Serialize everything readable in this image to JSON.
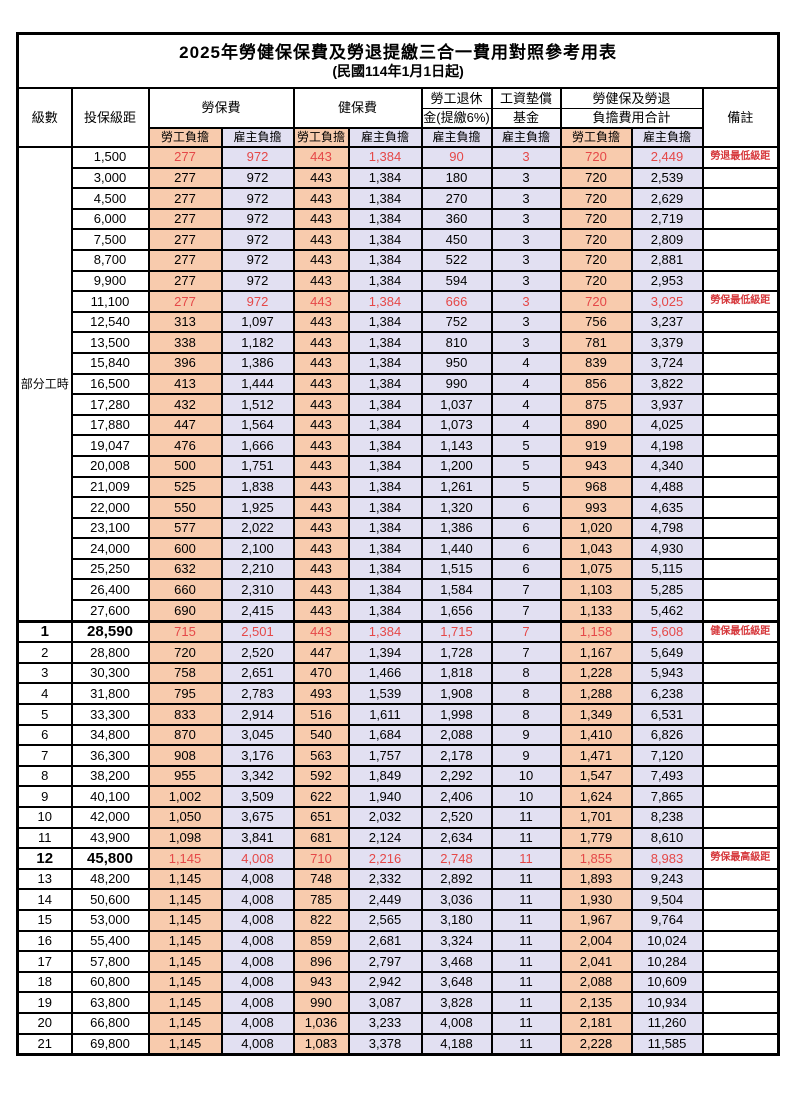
{
  "title": "2025年勞健保保費及勞退提繳三合一費用對照參考用表",
  "subtitle": "(民國114年1月1日起)",
  "header": {
    "col_level": "級數",
    "col_bracket": "投保級距",
    "labor_insurance": "勞保費",
    "health_insurance": "健保費",
    "pension_line1": "勞工退休",
    "pension_line2": "金(提繳6%)",
    "wage_fund_line1": "工資墊償",
    "wage_fund_line2": "基金",
    "total_line1": "勞健保及勞退",
    "total_line2": "負擔費用合計",
    "remark": "備註",
    "employee_burden": "勞工負擔",
    "employer_burden": "雇主負擔"
  },
  "group": {
    "label": "部分工時",
    "span": 23
  },
  "rows": [
    {
      "level": "",
      "bracket": "1,500",
      "values": [
        "277",
        "972",
        "443",
        "1,384",
        "90",
        "3",
        "720",
        "2,449"
      ],
      "remark": "勞退最低級距",
      "red": true,
      "key": false
    },
    {
      "level": "",
      "bracket": "3,000",
      "values": [
        "277",
        "972",
        "443",
        "1,384",
        "180",
        "3",
        "720",
        "2,539"
      ],
      "remark": "",
      "red": false,
      "key": false
    },
    {
      "level": "",
      "bracket": "4,500",
      "values": [
        "277",
        "972",
        "443",
        "1,384",
        "270",
        "3",
        "720",
        "2,629"
      ],
      "remark": "",
      "red": false,
      "key": false
    },
    {
      "level": "",
      "bracket": "6,000",
      "values": [
        "277",
        "972",
        "443",
        "1,384",
        "360",
        "3",
        "720",
        "2,719"
      ],
      "remark": "",
      "red": false,
      "key": false
    },
    {
      "level": "",
      "bracket": "7,500",
      "values": [
        "277",
        "972",
        "443",
        "1,384",
        "450",
        "3",
        "720",
        "2,809"
      ],
      "remark": "",
      "red": false,
      "key": false
    },
    {
      "level": "",
      "bracket": "8,700",
      "values": [
        "277",
        "972",
        "443",
        "1,384",
        "522",
        "3",
        "720",
        "2,881"
      ],
      "remark": "",
      "red": false,
      "key": false
    },
    {
      "level": "",
      "bracket": "9,900",
      "values": [
        "277",
        "972",
        "443",
        "1,384",
        "594",
        "3",
        "720",
        "2,953"
      ],
      "remark": "",
      "red": false,
      "key": false
    },
    {
      "level": "",
      "bracket": "11,100",
      "values": [
        "277",
        "972",
        "443",
        "1,384",
        "666",
        "3",
        "720",
        "3,025"
      ],
      "remark": "勞保最低級距",
      "red": true,
      "key": false
    },
    {
      "level": "",
      "bracket": "12,540",
      "values": [
        "313",
        "1,097",
        "443",
        "1,384",
        "752",
        "3",
        "756",
        "3,237"
      ],
      "remark": "",
      "red": false,
      "key": false
    },
    {
      "level": "",
      "bracket": "13,500",
      "values": [
        "338",
        "1,182",
        "443",
        "1,384",
        "810",
        "3",
        "781",
        "3,379"
      ],
      "remark": "",
      "red": false,
      "key": false
    },
    {
      "level": "",
      "bracket": "15,840",
      "values": [
        "396",
        "1,386",
        "443",
        "1,384",
        "950",
        "4",
        "839",
        "3,724"
      ],
      "remark": "",
      "red": false,
      "key": false
    },
    {
      "level": "",
      "bracket": "16,500",
      "values": [
        "413",
        "1,444",
        "443",
        "1,384",
        "990",
        "4",
        "856",
        "3,822"
      ],
      "remark": "",
      "red": false,
      "key": false
    },
    {
      "level": "",
      "bracket": "17,280",
      "values": [
        "432",
        "1,512",
        "443",
        "1,384",
        "1,037",
        "4",
        "875",
        "3,937"
      ],
      "remark": "",
      "red": false,
      "key": false
    },
    {
      "level": "",
      "bracket": "17,880",
      "values": [
        "447",
        "1,564",
        "443",
        "1,384",
        "1,073",
        "4",
        "890",
        "4,025"
      ],
      "remark": "",
      "red": false,
      "key": false
    },
    {
      "level": "",
      "bracket": "19,047",
      "values": [
        "476",
        "1,666",
        "443",
        "1,384",
        "1,143",
        "5",
        "919",
        "4,198"
      ],
      "remark": "",
      "red": false,
      "key": false
    },
    {
      "level": "",
      "bracket": "20,008",
      "values": [
        "500",
        "1,751",
        "443",
        "1,384",
        "1,200",
        "5",
        "943",
        "4,340"
      ],
      "remark": "",
      "red": false,
      "key": false
    },
    {
      "level": "",
      "bracket": "21,009",
      "values": [
        "525",
        "1,838",
        "443",
        "1,384",
        "1,261",
        "5",
        "968",
        "4,488"
      ],
      "remark": "",
      "red": false,
      "key": false
    },
    {
      "level": "",
      "bracket": "22,000",
      "values": [
        "550",
        "1,925",
        "443",
        "1,384",
        "1,320",
        "6",
        "993",
        "4,635"
      ],
      "remark": "",
      "red": false,
      "key": false
    },
    {
      "level": "",
      "bracket": "23,100",
      "values": [
        "577",
        "2,022",
        "443",
        "1,384",
        "1,386",
        "6",
        "1,020",
        "4,798"
      ],
      "remark": "",
      "red": false,
      "key": false
    },
    {
      "level": "",
      "bracket": "24,000",
      "values": [
        "600",
        "2,100",
        "443",
        "1,384",
        "1,440",
        "6",
        "1,043",
        "4,930"
      ],
      "remark": "",
      "red": false,
      "key": false
    },
    {
      "level": "",
      "bracket": "25,250",
      "values": [
        "632",
        "2,210",
        "443",
        "1,384",
        "1,515",
        "6",
        "1,075",
        "5,115"
      ],
      "remark": "",
      "red": false,
      "key": false
    },
    {
      "level": "",
      "bracket": "26,400",
      "values": [
        "660",
        "2,310",
        "443",
        "1,384",
        "1,584",
        "7",
        "1,103",
        "5,285"
      ],
      "remark": "",
      "red": false,
      "key": false
    },
    {
      "level": "",
      "bracket": "27,600",
      "values": [
        "690",
        "2,415",
        "443",
        "1,384",
        "1,656",
        "7",
        "1,133",
        "5,462"
      ],
      "remark": "",
      "red": false,
      "key": false
    },
    {
      "level": "1",
      "bracket": "28,590",
      "values": [
        "715",
        "2,501",
        "443",
        "1,384",
        "1,715",
        "7",
        "1,158",
        "5,608"
      ],
      "remark": "健保最低級距",
      "red": true,
      "key": true
    },
    {
      "level": "2",
      "bracket": "28,800",
      "values": [
        "720",
        "2,520",
        "447",
        "1,394",
        "1,728",
        "7",
        "1,167",
        "5,649"
      ],
      "remark": "",
      "red": false,
      "key": false
    },
    {
      "level": "3",
      "bracket": "30,300",
      "values": [
        "758",
        "2,651",
        "470",
        "1,466",
        "1,818",
        "8",
        "1,228",
        "5,943"
      ],
      "remark": "",
      "red": false,
      "key": false
    },
    {
      "level": "4",
      "bracket": "31,800",
      "values": [
        "795",
        "2,783",
        "493",
        "1,539",
        "1,908",
        "8",
        "1,288",
        "6,238"
      ],
      "remark": "",
      "red": false,
      "key": false
    },
    {
      "level": "5",
      "bracket": "33,300",
      "values": [
        "833",
        "2,914",
        "516",
        "1,611",
        "1,998",
        "8",
        "1,349",
        "6,531"
      ],
      "remark": "",
      "red": false,
      "key": false
    },
    {
      "level": "6",
      "bracket": "34,800",
      "values": [
        "870",
        "3,045",
        "540",
        "1,684",
        "2,088",
        "9",
        "1,410",
        "6,826"
      ],
      "remark": "",
      "red": false,
      "key": false
    },
    {
      "level": "7",
      "bracket": "36,300",
      "values": [
        "908",
        "3,176",
        "563",
        "1,757",
        "2,178",
        "9",
        "1,471",
        "7,120"
      ],
      "remark": "",
      "red": false,
      "key": false
    },
    {
      "level": "8",
      "bracket": "38,200",
      "values": [
        "955",
        "3,342",
        "592",
        "1,849",
        "2,292",
        "10",
        "1,547",
        "7,493"
      ],
      "remark": "",
      "red": false,
      "key": false
    },
    {
      "level": "9",
      "bracket": "40,100",
      "values": [
        "1,002",
        "3,509",
        "622",
        "1,940",
        "2,406",
        "10",
        "1,624",
        "7,865"
      ],
      "remark": "",
      "red": false,
      "key": false
    },
    {
      "level": "10",
      "bracket": "42,000",
      "values": [
        "1,050",
        "3,675",
        "651",
        "2,032",
        "2,520",
        "11",
        "1,701",
        "8,238"
      ],
      "remark": "",
      "red": false,
      "key": false
    },
    {
      "level": "11",
      "bracket": "43,900",
      "values": [
        "1,098",
        "3,841",
        "681",
        "2,124",
        "2,634",
        "11",
        "1,779",
        "8,610"
      ],
      "remark": "",
      "red": false,
      "key": false
    },
    {
      "level": "12",
      "bracket": "45,800",
      "values": [
        "1,145",
        "4,008",
        "710",
        "2,216",
        "2,748",
        "11",
        "1,855",
        "8,983"
      ],
      "remark": "勞保最高級距",
      "red": true,
      "key": true
    },
    {
      "level": "13",
      "bracket": "48,200",
      "values": [
        "1,145",
        "4,008",
        "748",
        "2,332",
        "2,892",
        "11",
        "1,893",
        "9,243"
      ],
      "remark": "",
      "red": false,
      "key": false
    },
    {
      "level": "14",
      "bracket": "50,600",
      "values": [
        "1,145",
        "4,008",
        "785",
        "2,449",
        "3,036",
        "11",
        "1,930",
        "9,504"
      ],
      "remark": "",
      "red": false,
      "key": false
    },
    {
      "level": "15",
      "bracket": "53,000",
      "values": [
        "1,145",
        "4,008",
        "822",
        "2,565",
        "3,180",
        "11",
        "1,967",
        "9,764"
      ],
      "remark": "",
      "red": false,
      "key": false
    },
    {
      "level": "16",
      "bracket": "55,400",
      "values": [
        "1,145",
        "4,008",
        "859",
        "2,681",
        "3,324",
        "11",
        "2,004",
        "10,024"
      ],
      "remark": "",
      "red": false,
      "key": false
    },
    {
      "level": "17",
      "bracket": "57,800",
      "values": [
        "1,145",
        "4,008",
        "896",
        "2,797",
        "3,468",
        "11",
        "2,041",
        "10,284"
      ],
      "remark": "",
      "red": false,
      "key": false
    },
    {
      "level": "18",
      "bracket": "60,800",
      "values": [
        "1,145",
        "4,008",
        "943",
        "2,942",
        "3,648",
        "11",
        "2,088",
        "10,609"
      ],
      "remark": "",
      "red": false,
      "key": false
    },
    {
      "level": "19",
      "bracket": "63,800",
      "values": [
        "1,145",
        "4,008",
        "990",
        "3,087",
        "3,828",
        "11",
        "2,135",
        "10,934"
      ],
      "remark": "",
      "red": false,
      "key": false
    },
    {
      "level": "20",
      "bracket": "66,800",
      "values": [
        "1,145",
        "4,008",
        "1,036",
        "3,233",
        "4,008",
        "11",
        "2,181",
        "11,260"
      ],
      "remark": "",
      "red": false,
      "key": false
    },
    {
      "level": "21",
      "bracket": "69,800",
      "values": [
        "1,145",
        "4,008",
        "1,083",
        "3,378",
        "4,188",
        "11",
        "2,228",
        "11,585"
      ],
      "remark": "",
      "red": false,
      "key": false
    }
  ],
  "colors": {
    "employee_bg": "#F8CBAD",
    "employer_bg": "#E2E0F2",
    "red_text": "#E54848",
    "remark_red": "#D6383C",
    "border": "#000000"
  }
}
